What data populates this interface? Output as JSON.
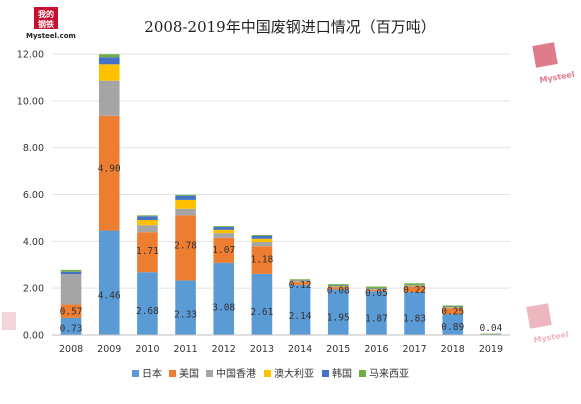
{
  "watermark": {
    "cn_top": "我的",
    "cn_bottom": "钢铁",
    "latin": "Mysteel.com",
    "latin_short": "Mysteel",
    "color": "#c8102e"
  },
  "chart_data": {
    "type": "bar",
    "stacked": true,
    "title": "2008-2019年中国废钢进口情况（百万吨）",
    "xlabel": "",
    "ylabel": "",
    "ylim": [
      0,
      12
    ],
    "yticks": [
      "0.00",
      "2.00",
      "4.00",
      "6.00",
      "8.00",
      "10.00",
      "12.00"
    ],
    "grid": true,
    "legend_position": "bottom",
    "categories": [
      "2008",
      "2009",
      "2010",
      "2011",
      "2012",
      "2013",
      "2014",
      "2015",
      "2016",
      "2017",
      "2018",
      "2019"
    ],
    "series": [
      {
        "name": "日本",
        "color": "#5b9bd5",
        "values": [
          0.73,
          4.46,
          2.68,
          2.33,
          3.08,
          2.61,
          2.14,
          1.95,
          1.87,
          1.83,
          0.89,
          0.04
        ],
        "labels": [
          "0.73",
          "4.46",
          "2.68",
          "2.33",
          "3.08",
          "2.61",
          "2.14",
          "1.95",
          "1.87",
          "1.83",
          "0.89",
          "0.04"
        ]
      },
      {
        "name": "美国",
        "color": "#ed7d31",
        "values": [
          0.57,
          4.9,
          1.71,
          2.78,
          1.07,
          1.18,
          0.12,
          0.08,
          0.05,
          0.22,
          0.25,
          0.0
        ],
        "labels": [
          "0.57",
          "4.90",
          "1.71",
          "2.78",
          "1.07",
          "1.18",
          "0.12",
          "0.08",
          "0.05",
          "0.22",
          "0.25",
          ""
        ]
      },
      {
        "name": "中国香港",
        "color": "#a5a5a5",
        "values": [
          1.3,
          1.5,
          0.3,
          0.28,
          0.2,
          0.18,
          0.04,
          0.04,
          0.04,
          0.04,
          0.03,
          0.0
        ],
        "labels": [
          "",
          "",
          "",
          "",
          "",
          "",
          "",
          "",
          "",
          "",
          "",
          ""
        ]
      },
      {
        "name": "澳大利亚",
        "color": "#ffc000",
        "values": [
          0.0,
          0.7,
          0.22,
          0.38,
          0.14,
          0.14,
          0.02,
          0.02,
          0.02,
          0.03,
          0.02,
          0.0
        ],
        "labels": [
          "",
          "",
          "",
          "",
          "",
          "",
          "",
          "",
          "",
          "",
          "",
          ""
        ]
      },
      {
        "name": "韩国",
        "color": "#4472c4",
        "values": [
          0.1,
          0.3,
          0.16,
          0.18,
          0.12,
          0.12,
          0.02,
          0.03,
          0.03,
          0.03,
          0.03,
          0.0
        ],
        "labels": [
          "",
          "",
          "",
          "",
          "",
          "",
          "",
          "",
          "",
          "",
          "",
          ""
        ]
      },
      {
        "name": "马来西亚",
        "color": "#70ad47",
        "values": [
          0.08,
          0.13,
          0.04,
          0.04,
          0.04,
          0.04,
          0.04,
          0.05,
          0.06,
          0.06,
          0.04,
          0.02
        ],
        "labels": [
          "",
          "",
          "",
          "",
          "",
          "",
          "",
          "",
          "",
          "",
          "",
          ""
        ]
      }
    ]
  }
}
